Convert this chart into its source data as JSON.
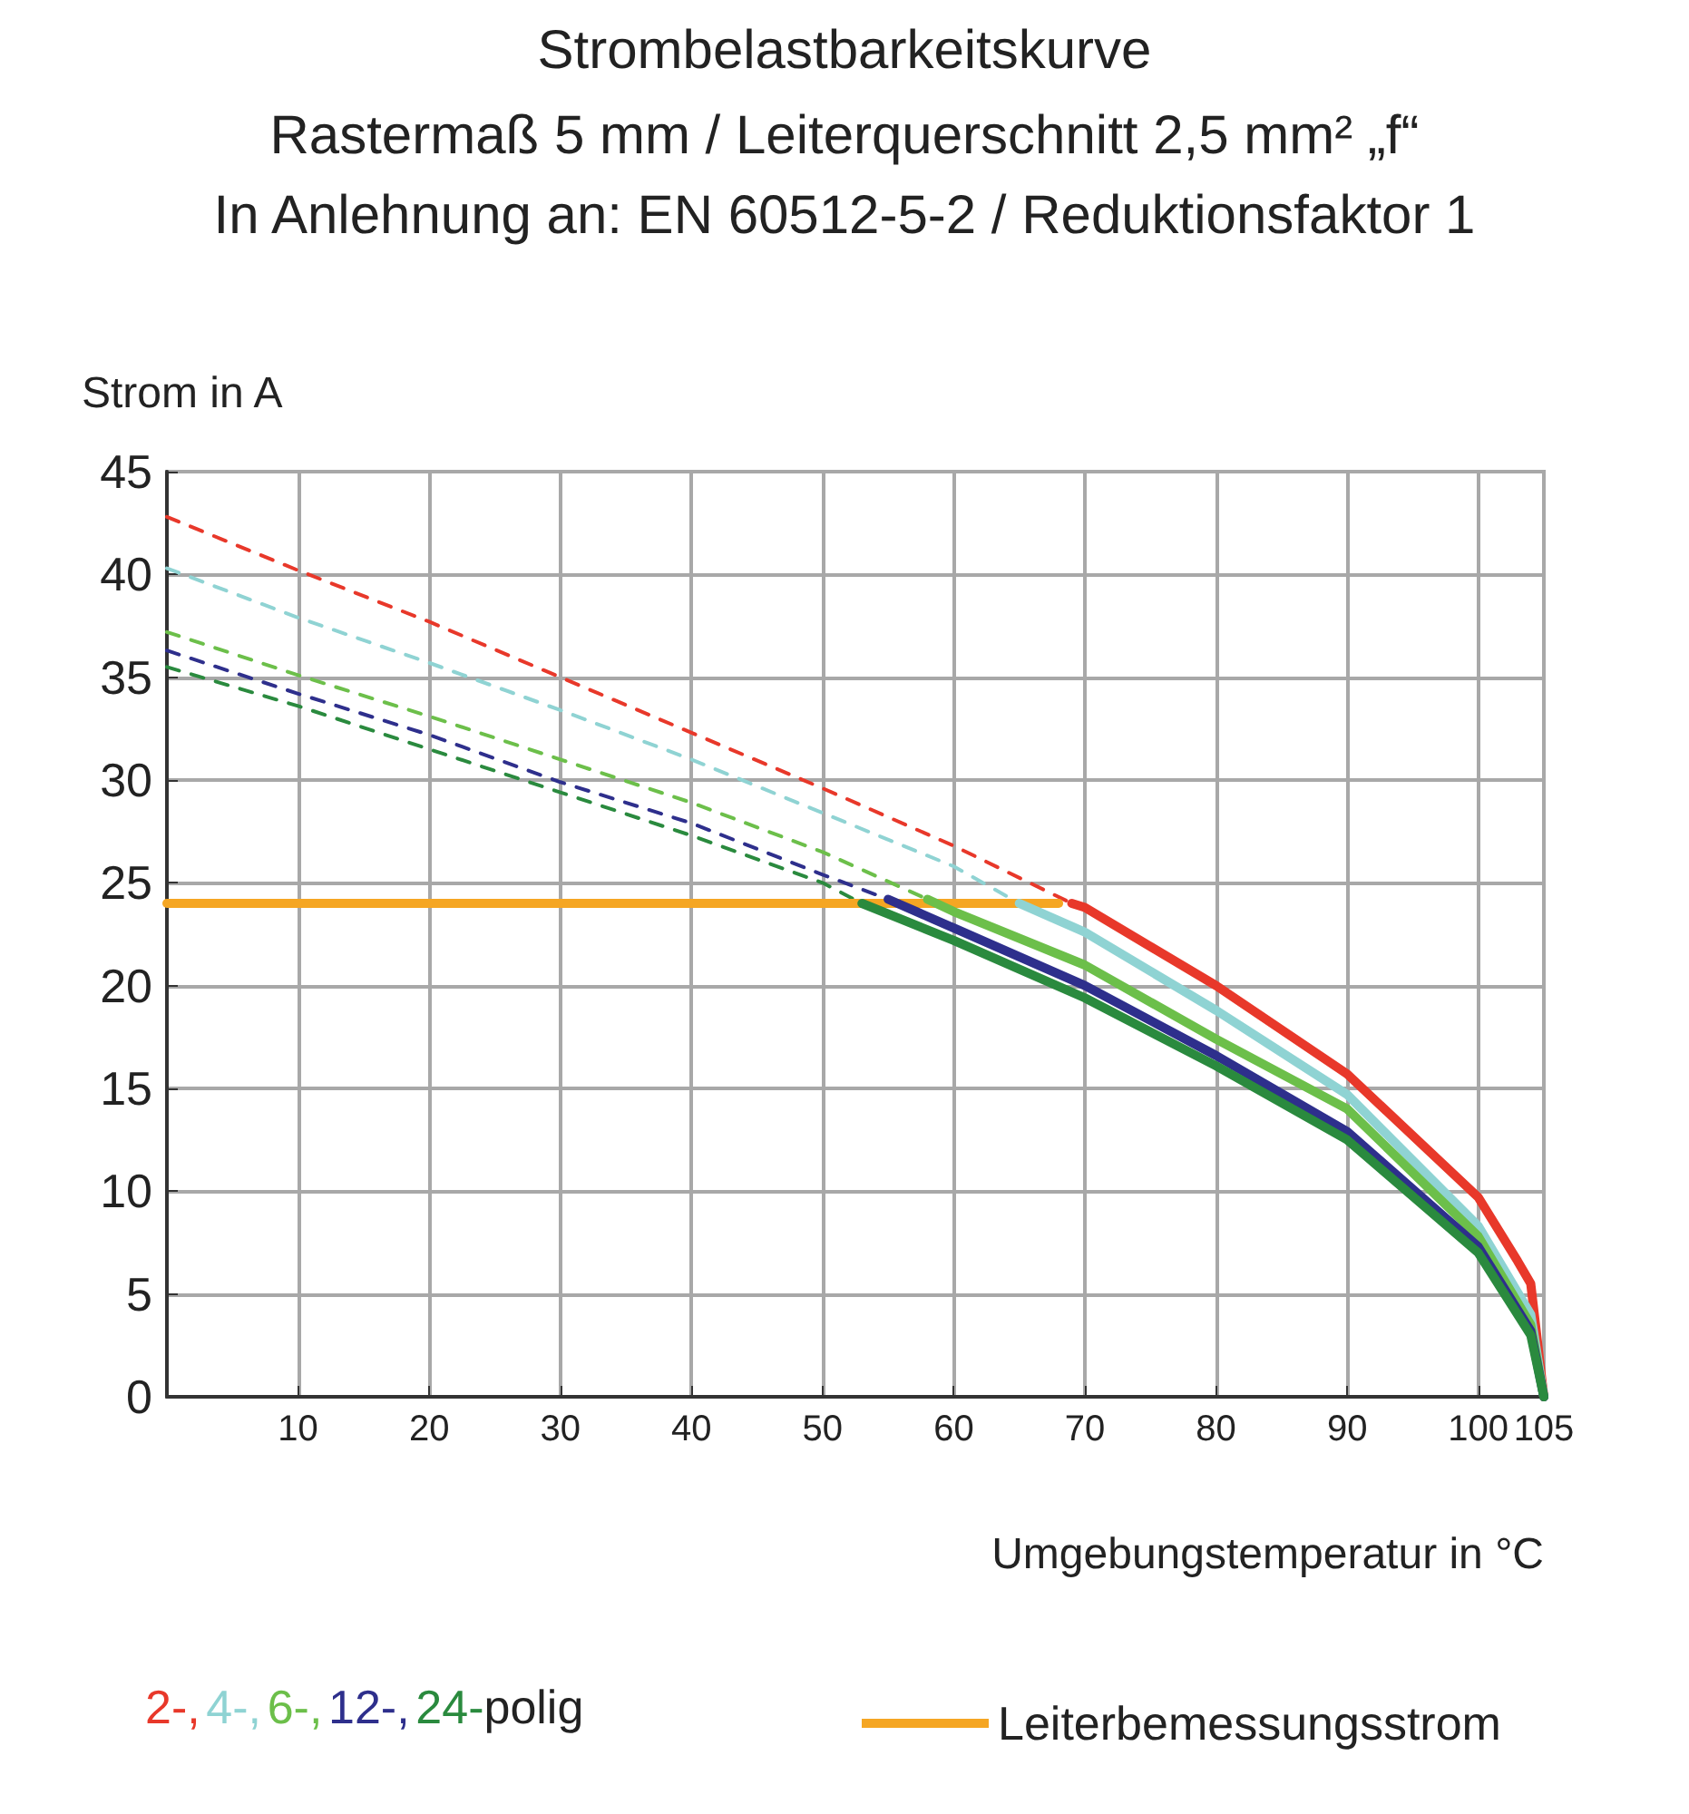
{
  "chart_data": {
    "type": "line",
    "title": "Strombelastbarkeitskurve",
    "subtitle": "Rastermaß 5 mm / Leiterquerschnitt 2,5 mm² „f“\nIn Anlehnung an: EN 60512-5-2 / Reduktionsfaktor 1",
    "xlabel": "Umgebungstemperatur in °C",
    "ylabel": "Strom in A",
    "legend_title": "polig",
    "xlim": [
      0,
      105
    ],
    "xticks": [
      {
        "value": 0,
        "label": null
      },
      10,
      20,
      30,
      40,
      50,
      60,
      70,
      80,
      90,
      100,
      105
    ],
    "ylim": [
      0,
      45
    ],
    "yticks": [
      0,
      5,
      10,
      15,
      20,
      25,
      30,
      35,
      40,
      45
    ],
    "grid": true,
    "legend": "bottom",
    "marker": "none",
    "series": [
      {
        "color": "#e8382a",
        "line_style": "dashed",
        "x": [
          0,
          10,
          20,
          30,
          40,
          50,
          60,
          69
        ],
        "values": [
          42.8,
          40.2,
          37.7,
          35.0,
          32.3,
          29.6,
          26.8,
          24.0
        ]
      },
      {
        "color": "#8fd3d3",
        "line_style": "dashed",
        "x": [
          0,
          10,
          20,
          30,
          40,
          50,
          60,
          65
        ],
        "values": [
          40.3,
          37.9,
          35.7,
          33.4,
          31.0,
          28.4,
          25.8,
          24.0
        ]
      },
      {
        "color": "#6cbf4a",
        "line_style": "dashed",
        "x": [
          0,
          10,
          20,
          30,
          40,
          50,
          58
        ],
        "values": [
          37.2,
          35.1,
          33.1,
          31.0,
          28.9,
          26.5,
          24.2
        ]
      },
      {
        "color": "#2e2f8c",
        "line_style": "dashed",
        "x": [
          0,
          10,
          20,
          30,
          40,
          50,
          55
        ],
        "values": [
          36.3,
          34.2,
          32.2,
          29.9,
          27.9,
          25.4,
          24.2
        ]
      },
      {
        "color": "#2a8a3e",
        "line_style": "dashed",
        "x": [
          0,
          10,
          20,
          30,
          40,
          50,
          53
        ],
        "values": [
          35.5,
          33.6,
          31.5,
          29.4,
          27.3,
          25.0,
          24.0
        ]
      },
      {
        "name": "Leiterbemessungsstrom",
        "color": "#f5a623",
        "line_style": "solid",
        "x": [
          0,
          68
        ],
        "values": [
          24,
          24
        ]
      },
      {
        "name": "2-,",
        "color": "#e8382a",
        "line_style": "solid",
        "x": [
          69,
          70,
          80,
          90,
          100,
          103,
          104,
          105
        ],
        "values": [
          24.0,
          23.8,
          20.0,
          15.7,
          9.7,
          6.6,
          5.5,
          0
        ]
      },
      {
        "name": "4-,",
        "color": "#8fd3d3",
        "line_style": "solid",
        "x": [
          65,
          70,
          80,
          90,
          100,
          104,
          105
        ],
        "values": [
          24.0,
          22.6,
          18.8,
          14.7,
          8.3,
          4.0,
          0
        ]
      },
      {
        "name": "6-,",
        "color": "#6cbf4a",
        "line_style": "solid",
        "x": [
          58,
          60,
          70,
          80,
          90,
          100,
          104,
          105
        ],
        "values": [
          24.2,
          23.6,
          21.0,
          17.4,
          14.0,
          7.8,
          3.5,
          0
        ]
      },
      {
        "name": "12-,",
        "color": "#2e2f8c",
        "line_style": "solid",
        "x": [
          55,
          60,
          70,
          80,
          90,
          100,
          104,
          105
        ],
        "values": [
          24.2,
          22.8,
          20.0,
          16.6,
          12.9,
          7.3,
          3.2,
          0
        ]
      },
      {
        "name": "24-",
        "color": "#2a8a3e",
        "line_style": "solid",
        "x": [
          53,
          60,
          70,
          80,
          90,
          100,
          104,
          105
        ],
        "values": [
          24.0,
          22.2,
          19.4,
          16.1,
          12.5,
          7.0,
          3.0,
          0
        ]
      }
    ]
  }
}
